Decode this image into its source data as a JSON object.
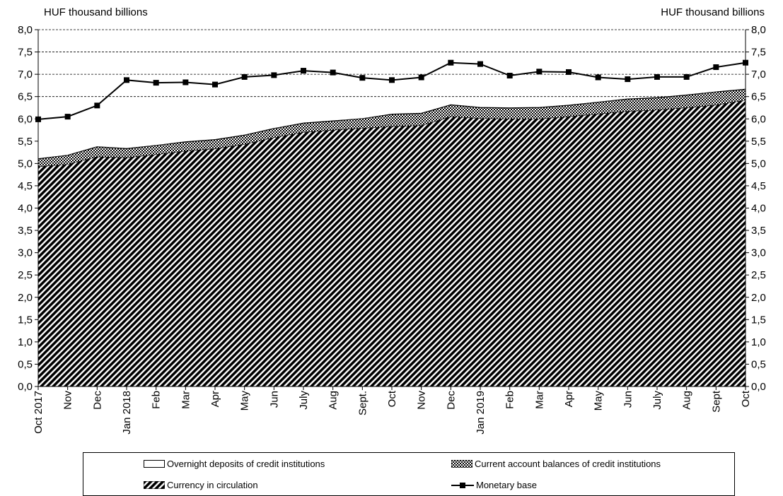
{
  "chart_data": {
    "type": "area",
    "title": "",
    "y_unit_left": "HUF thousand billions",
    "y_unit_right": "HUF thousand billions",
    "ylim": [
      0,
      8
    ],
    "y_ticks": [
      "0,0",
      "0,5",
      "1,0",
      "1,5",
      "2,0",
      "2,5",
      "3,0",
      "3,5",
      "4,0",
      "4,5",
      "5,0",
      "5,5",
      "6,0",
      "6,5",
      "7,0",
      "7,5",
      "8,0"
    ],
    "categories": [
      "Oct 2017",
      "Nov",
      "Dec",
      "Jan 2018",
      "Feb",
      "Mar",
      "Apr",
      "May",
      "Jun",
      "July",
      "Aug",
      "Sept.",
      "Oct",
      "Nov",
      "Dec",
      "Jan 2019",
      "Feb",
      "Mar",
      "Apr",
      "May",
      "Jun",
      "July",
      "Aug",
      "Sept",
      "Oct"
    ],
    "series": [
      {
        "name": "Currency in circulation",
        "kind": "stacked-area",
        "pattern": "diagonal-hatch",
        "values": [
          4.93,
          4.98,
          5.15,
          5.13,
          5.2,
          5.28,
          5.33,
          5.43,
          5.58,
          5.7,
          5.75,
          5.79,
          5.83,
          5.85,
          6.05,
          6.01,
          6.0,
          6.0,
          6.05,
          6.11,
          6.17,
          6.2,
          6.25,
          6.31,
          6.42
        ]
      },
      {
        "name": "Current account balances of credit institutions",
        "kind": "stacked-area",
        "pattern": "checker",
        "values": [
          0.17,
          0.2,
          0.22,
          0.2,
          0.2,
          0.2,
          0.2,
          0.2,
          0.2,
          0.2,
          0.2,
          0.21,
          0.27,
          0.27,
          0.26,
          0.24,
          0.24,
          0.25,
          0.25,
          0.26,
          0.27,
          0.27,
          0.28,
          0.29,
          0.24
        ]
      },
      {
        "name": "Overnight deposits of credit institutions",
        "kind": "stacked-area",
        "pattern": "white",
        "values": [
          0.01,
          0.01,
          0.01,
          0.01,
          0.01,
          0.01,
          0.01,
          0.01,
          0.01,
          0.01,
          0.01,
          0.01,
          0.01,
          0.01,
          0.01,
          0.01,
          0.01,
          0.01,
          0.01,
          0.01,
          0.01,
          0.01,
          0.01,
          0.01,
          0.01
        ]
      },
      {
        "name": "Monetary base",
        "kind": "line-with-square-markers",
        "values": [
          5.99,
          6.05,
          6.3,
          6.87,
          6.81,
          6.82,
          6.77,
          6.94,
          6.98,
          7.08,
          7.04,
          6.92,
          6.87,
          6.93,
          7.26,
          7.23,
          6.97,
          7.06,
          7.05,
          6.93,
          6.89,
          6.94,
          6.94,
          7.16,
          7.26
        ]
      }
    ],
    "legend": {
      "placement": "bottom",
      "items": [
        {
          "label": "Overnight deposits of credit institutions",
          "swatch": "white"
        },
        {
          "label": "Current account balances of credit institutions",
          "swatch": "checker"
        },
        {
          "label": "Currency in circulation",
          "swatch": "diagonal-hatch"
        },
        {
          "label": "Monetary base",
          "swatch": "line-marker"
        }
      ]
    },
    "gridlines": "dashed at 6.5, 7.0, 7.5, 8.0"
  }
}
